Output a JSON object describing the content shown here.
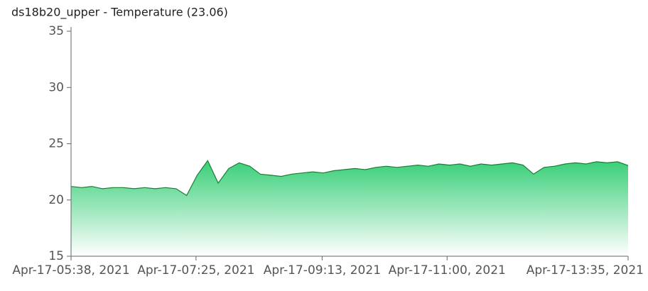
{
  "chart_data": {
    "type": "area",
    "title": "ds18b20_upper - Temperature (23.06)",
    "x": [
      "2021-04-17T05:38",
      "2021-04-17T05:47",
      "2021-04-17T05:56",
      "2021-04-17T06:05",
      "2021-04-17T06:14",
      "2021-04-17T06:23",
      "2021-04-17T06:32",
      "2021-04-17T06:41",
      "2021-04-17T06:50",
      "2021-04-17T06:59",
      "2021-04-17T07:08",
      "2021-04-17T07:17",
      "2021-04-17T07:26",
      "2021-04-17T07:35",
      "2021-04-17T07:44",
      "2021-04-17T07:53",
      "2021-04-17T08:02",
      "2021-04-17T08:11",
      "2021-04-17T08:20",
      "2021-04-17T08:29",
      "2021-04-17T08:38",
      "2021-04-17T08:47",
      "2021-04-17T08:56",
      "2021-04-17T09:05",
      "2021-04-17T09:14",
      "2021-04-17T09:23",
      "2021-04-17T09:32",
      "2021-04-17T09:41",
      "2021-04-17T09:50",
      "2021-04-17T09:59",
      "2021-04-17T10:08",
      "2021-04-17T10:17",
      "2021-04-17T10:26",
      "2021-04-17T10:35",
      "2021-04-17T10:44",
      "2021-04-17T10:53",
      "2021-04-17T11:02",
      "2021-04-17T11:11",
      "2021-04-17T11:20",
      "2021-04-17T11:29",
      "2021-04-17T11:38",
      "2021-04-17T11:47",
      "2021-04-17T11:56",
      "2021-04-17T12:05",
      "2021-04-17T12:14",
      "2021-04-17T12:23",
      "2021-04-17T12:32",
      "2021-04-17T12:41",
      "2021-04-17T12:50",
      "2021-04-17T12:59",
      "2021-04-17T13:08",
      "2021-04-17T13:17",
      "2021-04-17T13:26",
      "2021-04-17T13:35"
    ],
    "values": [
      21.2,
      21.1,
      21.2,
      21.0,
      21.1,
      21.1,
      21.0,
      21.1,
      21.0,
      21.1,
      21.0,
      20.4,
      22.2,
      23.5,
      21.5,
      22.8,
      23.3,
      23.0,
      22.3,
      22.2,
      22.1,
      22.3,
      22.4,
      22.5,
      22.4,
      22.6,
      22.7,
      22.8,
      22.7,
      22.9,
      23.0,
      22.9,
      23.0,
      23.1,
      23.0,
      23.2,
      23.1,
      23.2,
      23.0,
      23.2,
      23.1,
      23.2,
      23.3,
      23.1,
      22.3,
      22.9,
      23.0,
      23.2,
      23.3,
      23.2,
      23.4,
      23.3,
      23.4,
      23.06
    ],
    "color": "#2ecc71",
    "line_color": "#1e7b34",
    "xlim": [
      "2021-04-17T05:38",
      "2021-04-17T13:35"
    ],
    "xticks": [
      {
        "value": "2021-04-17T05:38",
        "label": "Apr-17-05:38, 2021"
      },
      {
        "value": "2021-04-17T07:25",
        "label": "Apr-17-07:25, 2021"
      },
      {
        "value": "2021-04-17T09:13",
        "label": "Apr-17-09:13, 2021"
      },
      {
        "value": "2021-04-17T11:00",
        "label": "Apr-17-11:00, 2021"
      },
      {
        "value": "2021-04-17T13:35",
        "label": "Apr-17-13:35, 2021"
      }
    ],
    "ylim": [
      15,
      35
    ],
    "yticks": [
      15,
      20,
      25,
      30,
      35
    ]
  }
}
